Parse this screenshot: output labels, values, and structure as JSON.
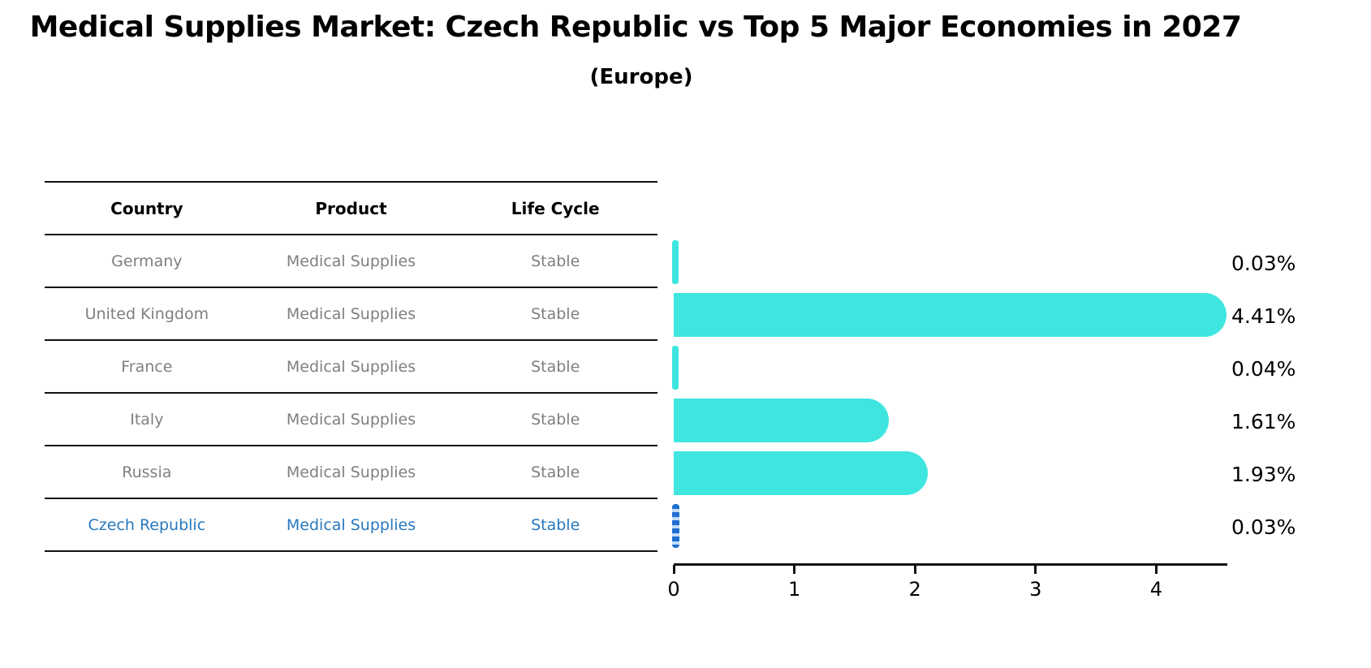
{
  "title": "Medical Supplies Market: Czech Republic vs Top 5 Major Economies in 2027",
  "subtitle": "(Europe)",
  "table": {
    "headers": [
      "Country",
      "Product",
      "Life Cycle"
    ],
    "rows": [
      {
        "country": "Germany",
        "product": "Medical Supplies",
        "life_cycle": "Stable",
        "highlight": false
      },
      {
        "country": "United Kingdom",
        "product": "Medical Supplies",
        "life_cycle": "Stable",
        "highlight": false
      },
      {
        "country": "France",
        "product": "Medical Supplies",
        "life_cycle": "Stable",
        "highlight": false
      },
      {
        "country": "Italy",
        "product": "Medical Supplies",
        "life_cycle": "Stable",
        "highlight": false
      },
      {
        "country": "Russia",
        "product": "Medical Supplies",
        "life_cycle": "Stable",
        "highlight": false
      },
      {
        "country": "Czech Republic",
        "product": "Medical Supplies",
        "life_cycle": "Stable",
        "highlight": true
      }
    ]
  },
  "chart_data": {
    "type": "bar",
    "orientation": "horizontal",
    "title": "Medical Supplies Market: Czech Republic vs Top 5 Major Economies in 2027",
    "subtitle": "(Europe)",
    "categories": [
      "Germany",
      "United Kingdom",
      "France",
      "Italy",
      "Russia",
      "Czech Republic"
    ],
    "values": [
      0.03,
      4.41,
      0.04,
      1.61,
      1.93,
      0.03
    ],
    "value_labels": [
      "0.03%",
      "4.41%",
      "0.04%",
      "1.61%",
      "1.93%",
      "0.03%"
    ],
    "xticks": [
      "0",
      "1",
      "2",
      "3",
      "4"
    ],
    "xtick_values": [
      0,
      1,
      2,
      3,
      4
    ],
    "xlim": [
      0,
      4.6
    ],
    "ylabel": "",
    "xlabel": "",
    "grid": false,
    "legend": null,
    "highlight_index": 5,
    "bar_color": "#3fe6e0",
    "highlight_bar_color": "#1e6fd2",
    "highlight_text_color": "#2878be"
  }
}
